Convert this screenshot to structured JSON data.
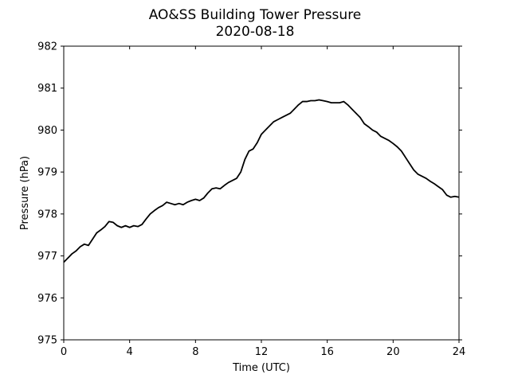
{
  "chart_data": {
    "type": "line",
    "title": "AO&SS Building Tower Pressure",
    "subtitle": "2020-08-18",
    "xlabel": "Time (UTC)",
    "ylabel": "Pressure (hPa)",
    "xlim": [
      0,
      24
    ],
    "ylim": [
      975,
      982
    ],
    "xticks": [
      0,
      4,
      8,
      12,
      16,
      20,
      24
    ],
    "yticks": [
      975,
      976,
      977,
      978,
      979,
      980,
      981,
      982
    ],
    "grid": false,
    "line_color": "#000000",
    "series": [
      {
        "x": [
          0,
          0.25,
          0.5,
          0.75,
          1.0,
          1.25,
          1.5,
          1.75,
          2.0,
          2.25,
          2.5,
          2.75,
          3.0,
          3.25,
          3.5,
          3.75,
          4.0,
          4.25,
          4.5,
          4.75,
          5.0,
          5.25,
          5.5,
          5.75,
          6.0,
          6.25,
          6.5,
          6.75,
          7.0,
          7.25,
          7.5,
          7.75,
          8.0,
          8.25,
          8.5,
          8.75,
          9.0,
          9.25,
          9.5,
          9.75,
          10.0,
          10.25,
          10.5,
          10.75,
          11.0,
          11.25,
          11.5,
          11.75,
          12.0,
          12.25,
          12.5,
          12.75,
          13.0,
          13.25,
          13.5,
          13.75,
          14.0,
          14.25,
          14.5,
          14.75,
          15.0,
          15.25,
          15.5,
          15.75,
          16.0,
          16.25,
          16.5,
          16.75,
          17.0,
          17.25,
          17.5,
          17.75,
          18.0,
          18.25,
          18.5,
          18.75,
          19.0,
          19.25,
          19.5,
          19.75,
          20.0,
          20.25,
          20.5,
          20.75,
          21.0,
          21.25,
          21.5,
          21.75,
          22.0,
          22.25,
          22.5,
          22.75,
          23.0,
          23.25,
          23.5,
          23.75,
          24.0
        ],
        "values": [
          976.85,
          976.95,
          977.05,
          977.12,
          977.22,
          977.28,
          977.25,
          977.4,
          977.55,
          977.62,
          977.7,
          977.82,
          977.8,
          977.72,
          977.68,
          977.72,
          977.68,
          977.72,
          977.7,
          977.75,
          977.88,
          978.0,
          978.08,
          978.15,
          978.2,
          978.28,
          978.25,
          978.22,
          978.25,
          978.22,
          978.28,
          978.32,
          978.35,
          978.32,
          978.38,
          978.5,
          978.6,
          978.62,
          978.6,
          978.68,
          978.75,
          978.8,
          978.85,
          979.0,
          979.3,
          979.5,
          979.55,
          979.7,
          979.9,
          980.0,
          980.1,
          980.2,
          980.25,
          980.3,
          980.35,
          980.4,
          980.5,
          980.6,
          980.68,
          980.68,
          980.7,
          980.7,
          980.72,
          980.7,
          980.68,
          980.65,
          980.65,
          980.65,
          980.68,
          980.6,
          980.5,
          980.4,
          980.3,
          980.15,
          980.08,
          980.0,
          979.95,
          979.85,
          979.8,
          979.75,
          979.68,
          979.6,
          979.5,
          979.35,
          979.2,
          979.05,
          978.95,
          978.9,
          978.85,
          978.78,
          978.72,
          978.65,
          978.58,
          978.45,
          978.4,
          978.42,
          978.4
        ]
      }
    ]
  }
}
